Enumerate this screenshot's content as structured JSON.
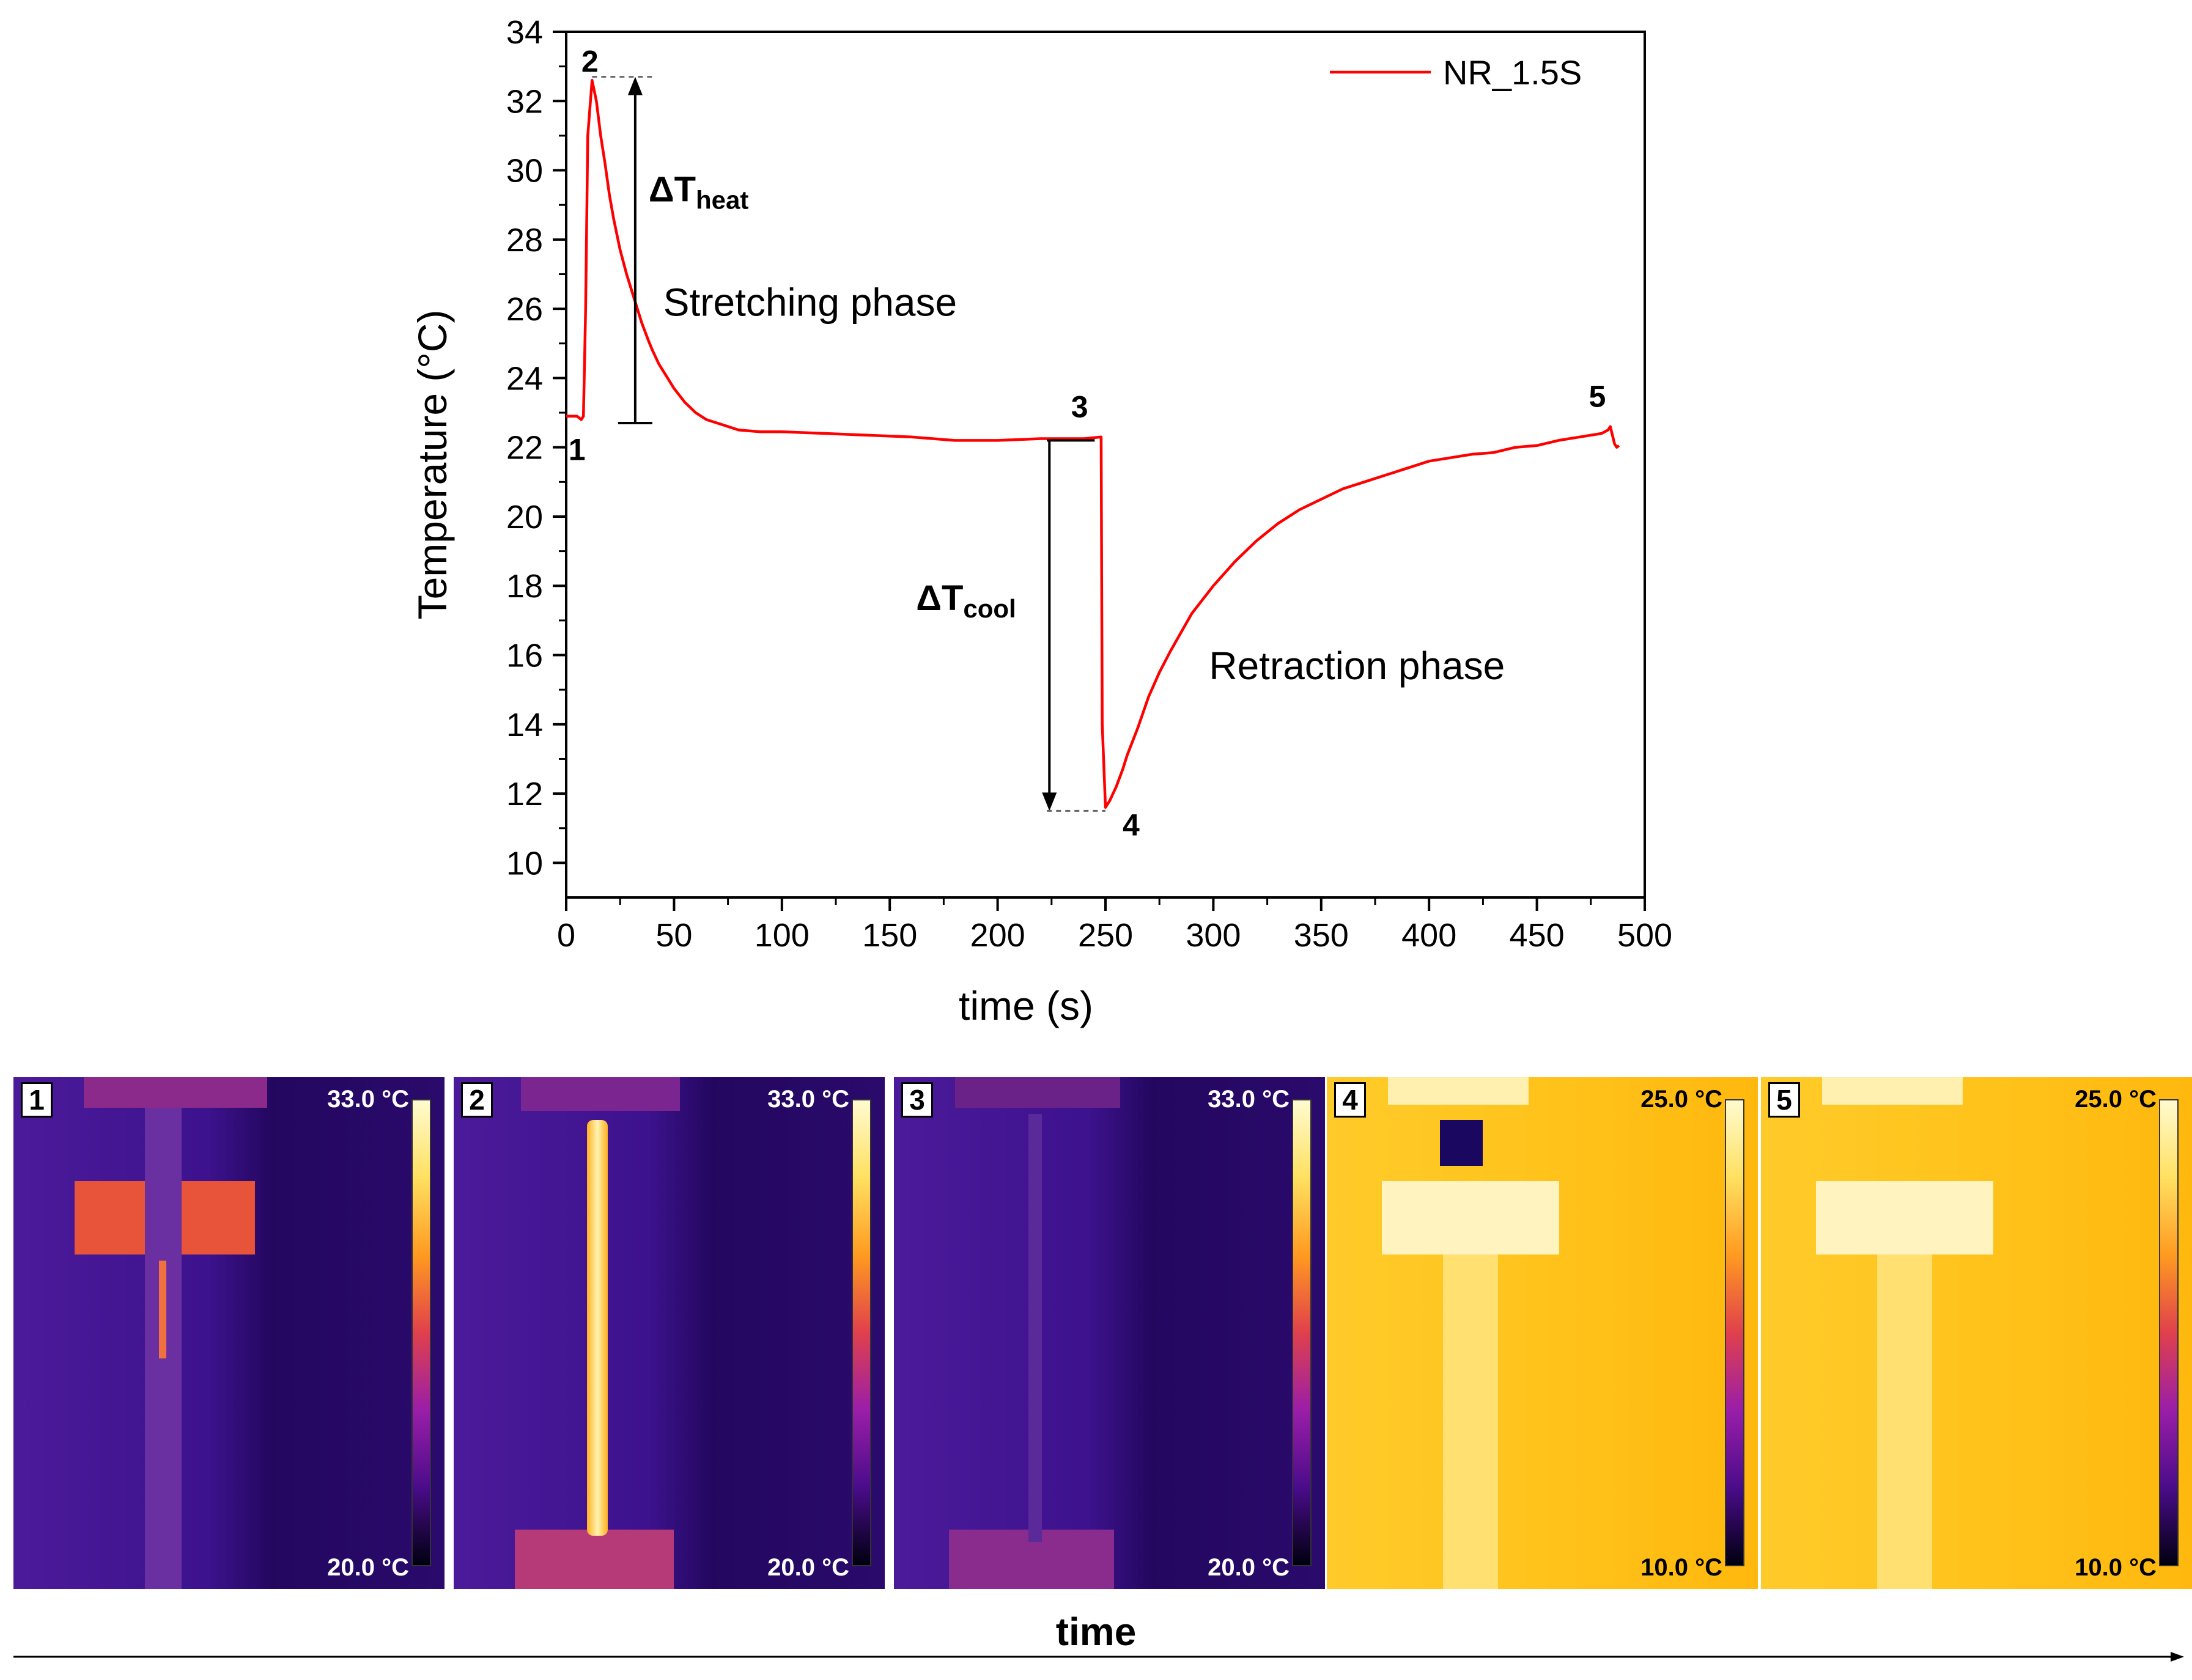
{
  "chart_data": {
    "type": "line",
    "series": [
      {
        "name": "NR_1.5S",
        "color": "#ff0000",
        "x": [
          0,
          5,
          7,
          8,
          9,
          10,
          12,
          14,
          16,
          18,
          20,
          22,
          25,
          28,
          30,
          32,
          35,
          38,
          40,
          43,
          46,
          50,
          55,
          60,
          65,
          70,
          80,
          90,
          100,
          120,
          140,
          160,
          180,
          200,
          220,
          240,
          248,
          248.5,
          250,
          252,
          255,
          258,
          260,
          265,
          270,
          275,
          280,
          290,
          300,
          310,
          320,
          330,
          340,
          350,
          360,
          370,
          380,
          390,
          400,
          410,
          420,
          430,
          440,
          450,
          460,
          470,
          480,
          483,
          484,
          486,
          487,
          488
        ],
        "y": [
          22.9,
          22.9,
          22.8,
          22.9,
          26.0,
          31.0,
          32.6,
          32.0,
          31.0,
          30.2,
          29.3,
          28.6,
          27.7,
          27.0,
          26.6,
          26.2,
          25.6,
          25.1,
          24.8,
          24.4,
          24.1,
          23.7,
          23.3,
          23.0,
          22.8,
          22.7,
          22.5,
          22.45,
          22.45,
          22.4,
          22.35,
          22.3,
          22.2,
          22.2,
          22.25,
          22.25,
          22.3,
          14.0,
          11.6,
          11.8,
          12.2,
          12.7,
          13.1,
          13.9,
          14.8,
          15.5,
          16.1,
          17.2,
          18.0,
          18.7,
          19.3,
          19.8,
          20.2,
          20.5,
          20.8,
          21.0,
          21.2,
          21.4,
          21.6,
          21.7,
          21.8,
          21.85,
          22.0,
          22.05,
          22.2,
          22.3,
          22.4,
          22.5,
          22.6,
          22.1,
          22.0,
          22.05
        ]
      }
    ],
    "title": "",
    "xlabel": "time (s)",
    "ylabel": "Temperature (°C)",
    "xlim": [
      0,
      500
    ],
    "ylim": [
      9,
      34
    ],
    "xticks": [
      0,
      50,
      100,
      150,
      200,
      250,
      300,
      350,
      400,
      450,
      500
    ],
    "yticks": [
      10,
      12,
      14,
      16,
      18,
      20,
      22,
      24,
      26,
      28,
      30,
      32,
      34
    ],
    "grid": false,
    "legend_position": "top-right",
    "points": [
      {
        "label": "1",
        "x": 5,
        "y": 22.8
      },
      {
        "label": "2",
        "x": 11,
        "y": 32.7
      },
      {
        "label": "3",
        "x": 238,
        "y": 22.3
      },
      {
        "label": "4",
        "x": 250,
        "y": 11.5
      },
      {
        "label": "5",
        "x": 478,
        "y": 22.6
      }
    ],
    "annotations": [
      {
        "id": "dheat",
        "base": "ΔT",
        "sub": "heat",
        "x_line": 32,
        "y_from": 22.7,
        "y_to": 32.7
      },
      {
        "id": "dcool",
        "base": "ΔT",
        "sub": "cool",
        "x_line": 224,
        "y_from": 22.2,
        "y_to": 11.5
      },
      {
        "id": "stretch",
        "text": "Stretching phase",
        "x": 45,
        "y": 25.8
      },
      {
        "id": "retract",
        "text": "Retraction phase",
        "x": 298,
        "y": 15.3
      }
    ]
  },
  "thermal_panels": [
    {
      "number": "1",
      "max": "33.0 °C",
      "min": "20.0 °C",
      "palette": "cold"
    },
    {
      "number": "2",
      "max": "33.0 °C",
      "min": "20.0 °C",
      "palette": "cold"
    },
    {
      "number": "3",
      "max": "33.0 °C",
      "min": "20.0 °C",
      "palette": "cold"
    },
    {
      "number": "4",
      "max": "25.0 °C",
      "min": "10.0 °C",
      "palette": "warm"
    },
    {
      "number": "5",
      "max": "25.0 °C",
      "min": "10.0 °C",
      "palette": "warm"
    }
  ],
  "timeline": {
    "label": "time"
  },
  "colors": {
    "line": "#ff0000",
    "cold_bg": "#3a0f8c",
    "warm_bg": "#ffb811"
  }
}
